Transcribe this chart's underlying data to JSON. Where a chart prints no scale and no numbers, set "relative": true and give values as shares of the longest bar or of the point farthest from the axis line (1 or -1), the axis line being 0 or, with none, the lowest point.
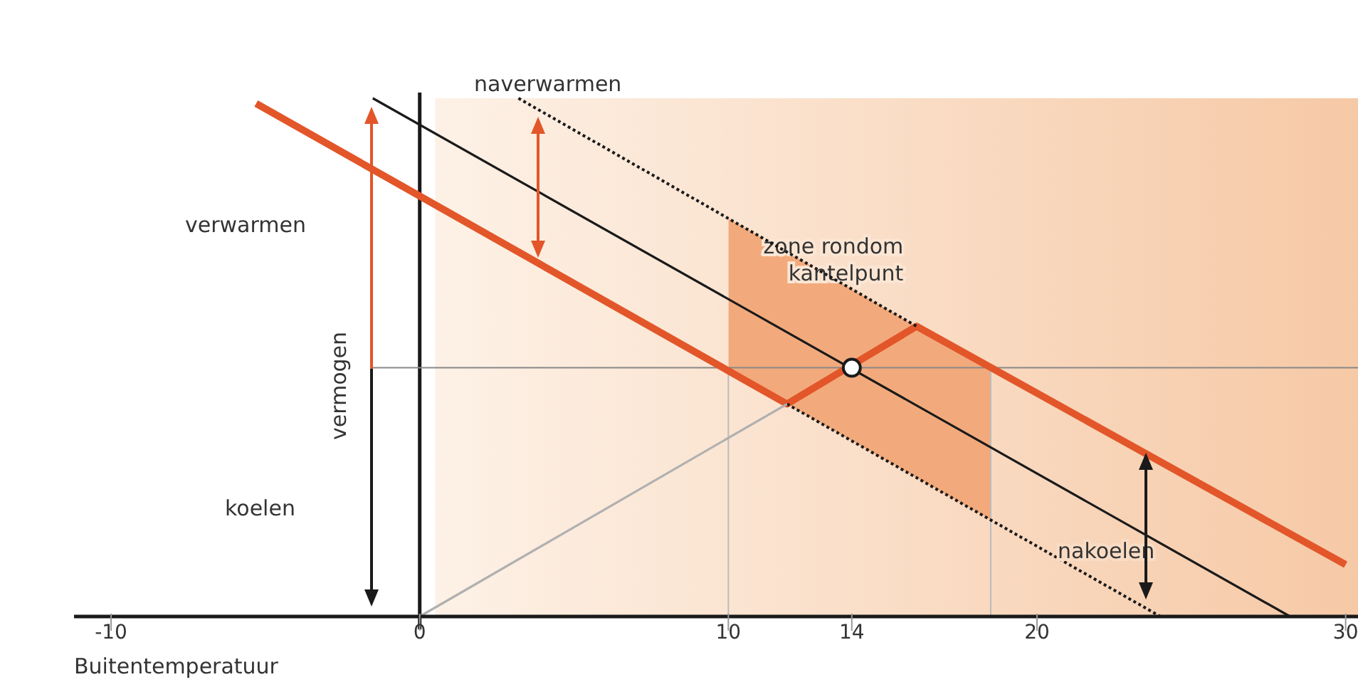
{
  "chart_data": {
    "type": "line",
    "relative": true,
    "xlabel": "Buitentemperatuur",
    "ylabel": "vermogen",
    "xlim": [
      -11.2,
      30.4
    ],
    "xticks": [
      -10,
      0,
      10,
      14,
      20,
      30
    ],
    "series": [
      {
        "color": "#1a1a1a",
        "x": [
          -1.52,
          28.2
        ],
        "values": [
          1,
          0
        ]
      },
      {
        "color": "#e2562a",
        "x": [
          -5.3,
          11.9,
          16.1,
          30.0
        ],
        "values": [
          0.99,
          0.41,
          0.56,
          0.1
        ]
      },
      {
        "color": "#1a1a1a",
        "line_style": "dotted",
        "x": [
          3.2,
          16.1
        ],
        "values": [
          1.0,
          0.56
        ]
      },
      {
        "color": "#1a1a1a",
        "line_style": "dotted",
        "x": [
          11.9,
          24.0
        ],
        "values": [
          0.41,
          0
        ]
      },
      {
        "color": "#b0b0b0",
        "x": [
          0,
          11.9
        ],
        "values": [
          0,
          0.41
        ]
      },
      {
        "type": "scatter",
        "marker": "circle",
        "color": "#1a1a1a",
        "x": [
          14
        ],
        "values": [
          0.48
        ]
      }
    ],
    "ref_lines": [
      {
        "axis": "x",
        "value": 0,
        "color": "#1a1a1a"
      },
      {
        "axis": "y",
        "value": 0.48,
        "color": "#888888"
      },
      {
        "axis": "x",
        "value": 10,
        "color": "#bbbbbb"
      },
      {
        "axis": "x",
        "value": 18.5,
        "color": "#bbbbbb"
      }
    ],
    "bands": [
      {
        "axis": "x",
        "from": 0.5,
        "to": 30.4,
        "color": "#f6c9a6"
      },
      {
        "axis": "x",
        "from": 10,
        "to": 18.5,
        "label": "zone rondom kantelpunt",
        "color": "#f2aa7c"
      }
    ],
    "annotations": [
      "verwarmen",
      "koelen",
      "naverwarmen",
      "nakoelen"
    ]
  }
}
